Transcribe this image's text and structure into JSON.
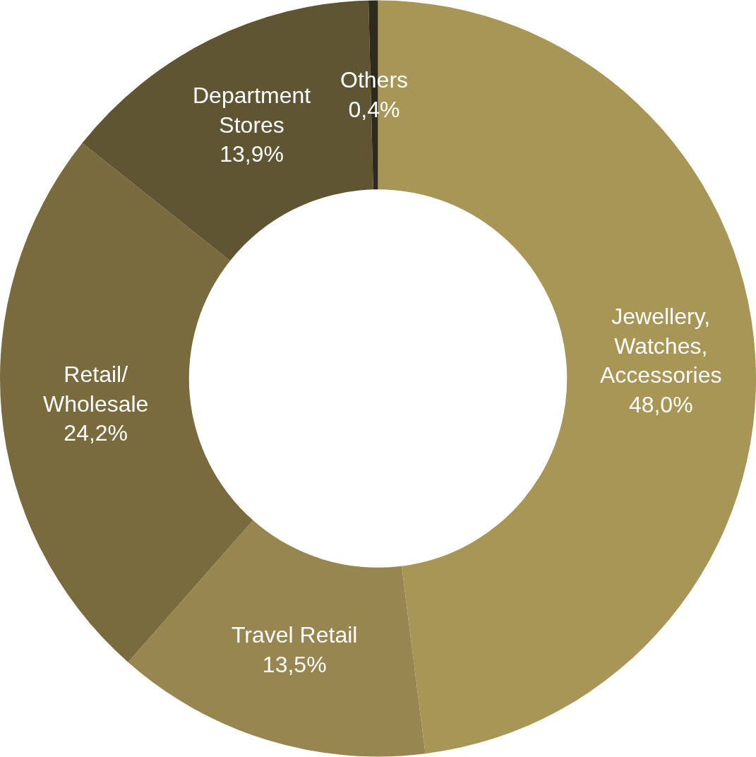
{
  "chart_data": {
    "type": "donut",
    "categories": [
      "Jewellery,\nWatches,\nAccessories",
      "Travel Retail",
      "Retail/\nWholesale",
      "Department\nStores",
      "Others"
    ],
    "values": [
      48.0,
      13.5,
      24.2,
      13.9,
      0.4
    ],
    "value_labels": [
      "48,0%",
      "13,5%",
      "24,2%",
      "13,9%",
      "0,4%"
    ],
    "colors": [
      "#a89656",
      "#978650",
      "#7a6b3e",
      "#605533",
      "#2e2a1c"
    ]
  }
}
